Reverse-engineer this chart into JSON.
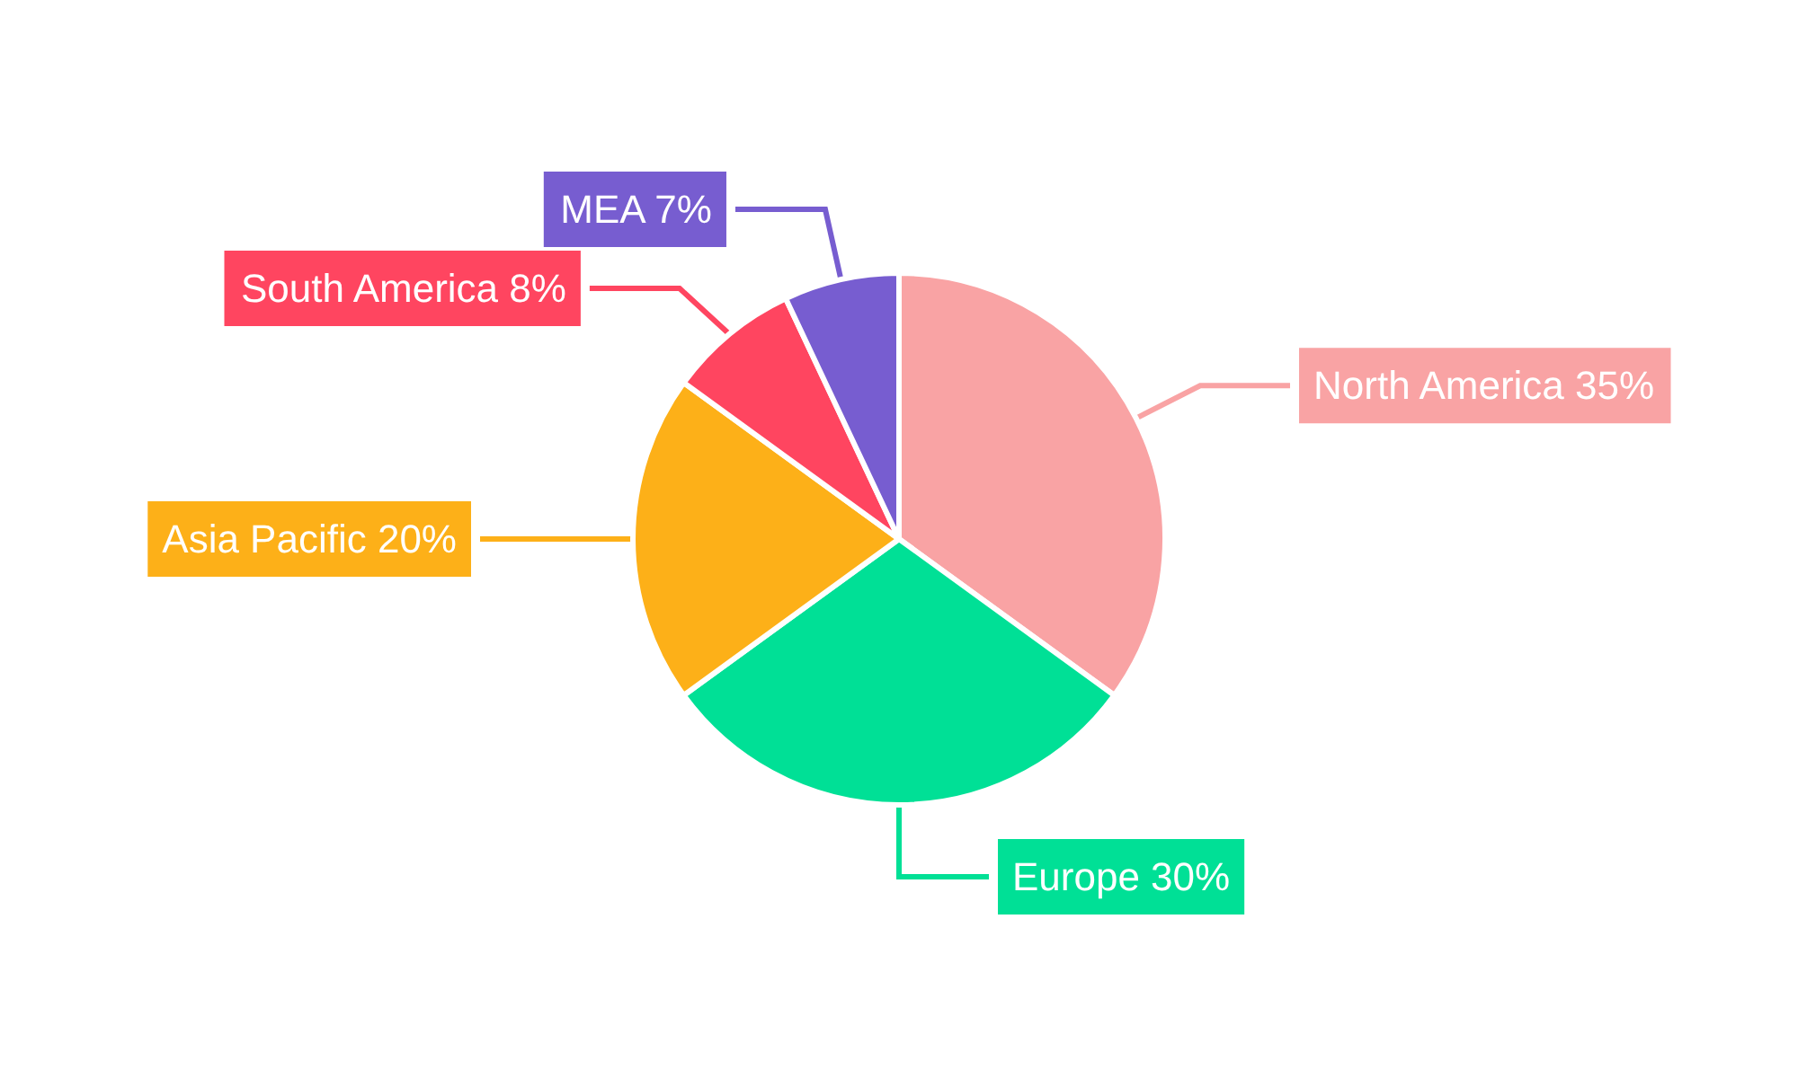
{
  "chart_data": {
    "type": "pie",
    "categories": [
      "North America",
      "Europe",
      "Asia Pacific",
      "South America",
      "MEA"
    ],
    "values": [
      35,
      30,
      20,
      8,
      7
    ],
    "value_labels": [
      "35%",
      "30%",
      "20%",
      "8%",
      "7%"
    ],
    "colors": [
      "#f9a3a4",
      "#00e096",
      "#fdb018",
      "#ff4560",
      "#775dd0"
    ],
    "legend": false
  }
}
